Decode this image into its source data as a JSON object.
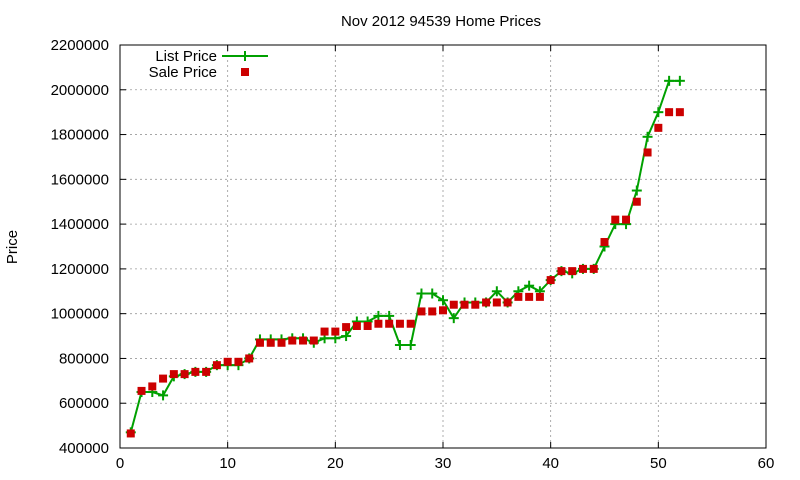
{
  "chart_data": {
    "type": "line",
    "title": "Nov 2012 94539 Home Prices",
    "xlabel": "",
    "ylabel": "Price",
    "xlim": [
      0,
      60
    ],
    "ylim": [
      400000,
      2200000
    ],
    "xticks": [
      0,
      10,
      20,
      30,
      40,
      50,
      60
    ],
    "yticks": [
      400000,
      600000,
      800000,
      1000000,
      1200000,
      1400000,
      1600000,
      1800000,
      2000000,
      2200000
    ],
    "grid": true,
    "legend_position": "top-left",
    "series": [
      {
        "name": "List Price",
        "style": "line-with-plus-markers",
        "color": "#00a000",
        "x": [
          1,
          2,
          3,
          4,
          5,
          6,
          7,
          8,
          9,
          10,
          11,
          12,
          13,
          14,
          15,
          16,
          17,
          18,
          19,
          20,
          21,
          22,
          23,
          24,
          25,
          26,
          27,
          28,
          29,
          30,
          31,
          32,
          33,
          34,
          35,
          36,
          37,
          38,
          39,
          40,
          41,
          42,
          43,
          44,
          45,
          46,
          47,
          48,
          49,
          50,
          51,
          52
        ],
        "y": [
          470000,
          650000,
          650000,
          635000,
          720000,
          730000,
          740000,
          740000,
          770000,
          770000,
          770000,
          800000,
          885000,
          885000,
          885000,
          890000,
          890000,
          870000,
          890000,
          890000,
          900000,
          965000,
          965000,
          990000,
          990000,
          860000,
          860000,
          1090000,
          1090000,
          1060000,
          980000,
          1050000,
          1050000,
          1050000,
          1100000,
          1050000,
          1100000,
          1125000,
          1100000,
          1150000,
          1190000,
          1180000,
          1200000,
          1200000,
          1300000,
          1400000,
          1400000,
          1550000,
          1790000,
          1900000,
          2040000,
          2040000
        ]
      },
      {
        "name": "Sale Price",
        "style": "square-markers",
        "color": "#cc0000",
        "x": [
          1,
          2,
          3,
          4,
          5,
          6,
          7,
          8,
          9,
          10,
          11,
          12,
          13,
          14,
          15,
          16,
          17,
          18,
          19,
          20,
          21,
          22,
          23,
          24,
          25,
          26,
          27,
          28,
          29,
          30,
          31,
          32,
          33,
          34,
          35,
          36,
          37,
          38,
          39,
          40,
          41,
          42,
          43,
          44,
          45,
          46,
          47,
          48,
          49,
          50,
          51,
          52
        ],
        "y": [
          465000,
          655000,
          675000,
          710000,
          730000,
          730000,
          740000,
          740000,
          770000,
          785000,
          785000,
          800000,
          870000,
          870000,
          870000,
          880000,
          880000,
          880000,
          920000,
          920000,
          940000,
          945000,
          945000,
          955000,
          955000,
          955000,
          955000,
          1010000,
          1010000,
          1015000,
          1040000,
          1040000,
          1040000,
          1050000,
          1050000,
          1050000,
          1075000,
          1075000,
          1075000,
          1150000,
          1190000,
          1190000,
          1200000,
          1200000,
          1320000,
          1420000,
          1420000,
          1500000,
          1720000,
          1830000,
          1900000,
          1900000
        ]
      }
    ]
  }
}
